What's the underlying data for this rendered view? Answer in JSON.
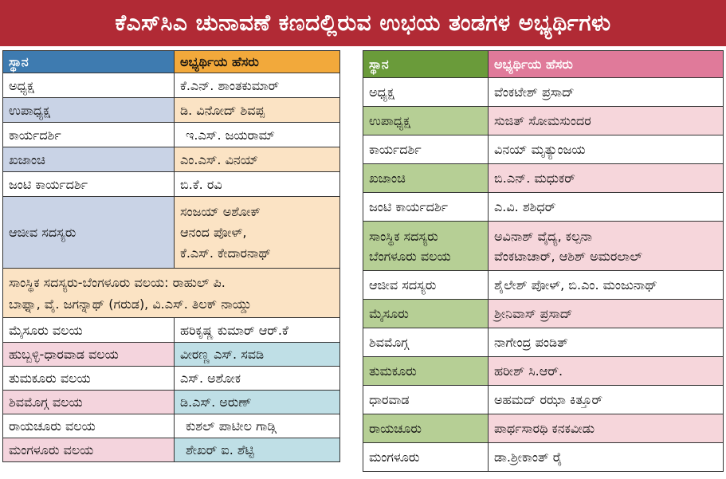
{
  "title": "ಕೆಎಸ್‌ಸಿಎ ಚುನಾವಣೆ ಕಣದಲ್ಲಿರುವ ಉಭಯ ತಂಡಗಳ ಅಭ್ಯರ್ಥಿಗಳು",
  "colors": {
    "banner": "#b12a35",
    "left_header_position": "#3e7bb0",
    "left_header_name": "#f2a93b",
    "right_header_position": "#6a9b3a",
    "right_header_name": "#e07a9a"
  },
  "left_table": {
    "header": {
      "position": "ಸ್ಥಾನ",
      "name": "ಅಭ್ಯರ್ಥಿಯ ಹೆಸರು"
    },
    "rows": [
      {
        "position": "ಅಧ್ಯಕ್ಷ",
        "name": "ಕೆ.ಎನ್. ಶಾಂತಕುಮಾರ್"
      },
      {
        "position": "ಉಪಾಧ್ಯಕ್ಷ",
        "name": "ಡಿ. ವಿನೋದ್ ಶಿವಪ್ಪ"
      },
      {
        "position": "ಕಾರ್ಯದರ್ಶಿ",
        "name": "ಇ.ಎಸ್. ಜಯರಾಮ್"
      },
      {
        "position": "ಖಜಾಂಚಿ",
        "name": "ಎಂ.ಎಸ್. ವಿನಯ್"
      },
      {
        "position": "ಜಂಟಿ ಕಾರ್ಯದರ್ಶಿ",
        "name": "ಬಿ.ಕೆ. ರವಿ"
      },
      {
        "position": "ಆಜೀವ ಸದಸ್ಯರು",
        "name_lines": [
          "ಸಂಜಯ್ ಅಶೋಕ್",
          "ಆನಂದ ಪೋಳ್,",
          "ಕೆ.ಎಸ್. ಕೇದಾರನಾಥ್"
        ]
      }
    ],
    "merged_row": [
      "ಸಾಂಸ್ಥಿಕ ಸದಸ್ಯರು-ಬೆಂಗಳೂರು ವಲಯ: ರಾಹುಲ್ ಪಿ.",
      "ಬಾಫ್ನಾ, ವೈ. ಜಗನ್ನಾಥ್ (ಗರುಡ), ವಿ.ಎಸ್. ತಿಲಕ್ ನಾಯ್ಡು"
    ],
    "rows2": [
      {
        "position": "ಮೈಸೂರು ವಲಯ",
        "name": "ಹರಿಕೃಷ್ಣ ಕುಮಾರ್ ಆರ್.ಕೆ"
      },
      {
        "position": "ಹುಬ್ಬಳ್ಳಿ-ಧಾರವಾಡ ವಲಯ",
        "name": "ವೀರಣ್ಣ ಎಸ್. ಸವಡಿ"
      },
      {
        "position": "ತುಮಕೂರು ವಲಯ",
        "name": "ಎಸ್. ಅಶೋಕ"
      },
      {
        "position": "ಶಿವಮೊಗ್ಗ ವಲಯ",
        "name": "ಡಿ.ಎಸ್. ಅರುಣ್"
      },
      {
        "position": "ರಾಯಚೂರು ವಲಯ",
        "name": "ಕುಶಲ್ ಪಾಟೀಲ ಗಾಡ್ಗಿ"
      },
      {
        "position": "ಮಂಗಳೂರು ವಲಯ",
        "name": "ಶೇಖರ್ ಐ. ಶೆಟ್ಟಿ"
      }
    ]
  },
  "right_table": {
    "header": {
      "position": "ಸ್ಥಾನ",
      "name": "ಅಭ್ಯರ್ಥಿಯ ಹೆಸರು"
    },
    "rows": [
      {
        "position": "ಅಧ್ಯಕ್ಷ",
        "name": "ವೆಂಕಟೇಶ್ ಪ್ರಸಾದ್"
      },
      {
        "position": "ಉಪಾಧ್ಯಕ್ಷ",
        "name": "ಸುಜಿತ್ ಸೋಮಸುಂದರ"
      },
      {
        "position": "ಕಾರ್ಯದರ್ಶಿ",
        "name": "ವಿನಯ್ ಮೃತ್ಯುಂಜಯ"
      },
      {
        "position": "ಖಜಾಂಚಿ",
        "name": "ಬಿ.ಎನ್. ಮಧುಕರ್"
      },
      {
        "position": "ಜಂಟಿ ಕಾರ್ಯದರ್ಶಿ",
        "name": "ಎ.ವಿ. ಶಶಿಧರ್"
      },
      {
        "position_lines": [
          "ಸಾಂಸ್ಥಿಕ ಸದಸ್ಯರು",
          "ಬೆಂಗಳೂರು ವಲಯ"
        ],
        "name_lines": [
          "ಅವಿನಾಶ್ ವೈದ್ಯ, ಕಲ್ಪನಾ",
          "ವೆಂಕಟಾಚಾರ್, ಆಶಿಶ್ ಅಮರಲಾಲ್"
        ]
      },
      {
        "position": "ಆಜೀವ ಸದಸ್ಯರು",
        "name": "ಶೈಲೇಶ್ ಪೋಳ್, ಬಿ.ಎಂ. ಮಂಜುನಾಥ್"
      },
      {
        "position": "ಮೈಸೂರು",
        "name": "ಶ್ರೀನಿವಾಸ್ ಪ್ರಸಾದ್"
      },
      {
        "position": "ಶಿವಮೊಗ್ಗ",
        "name": "ನಾಗೇಂದ್ರ ಪಂಡಿತ್"
      },
      {
        "position": "ತುಮಕೂರು",
        "name": "ಹರೀಶ್ ಸಿ.ಆರ್."
      },
      {
        "position": "ಧಾರವಾಡ",
        "name": "ಅಹಮದ್ ರಝಾ ಕಿತ್ತೂರ್"
      },
      {
        "position": "ರಾಯಚೂರು",
        "name": "ಪಾರ್ಥಸಾರಥಿ ಕನಕವೀಡು"
      },
      {
        "position": "ಮಂಗಳೂರು",
        "name": "ಡಾ.ಶ್ರೀಕಾಂತ್ ರೈ"
      }
    ]
  }
}
